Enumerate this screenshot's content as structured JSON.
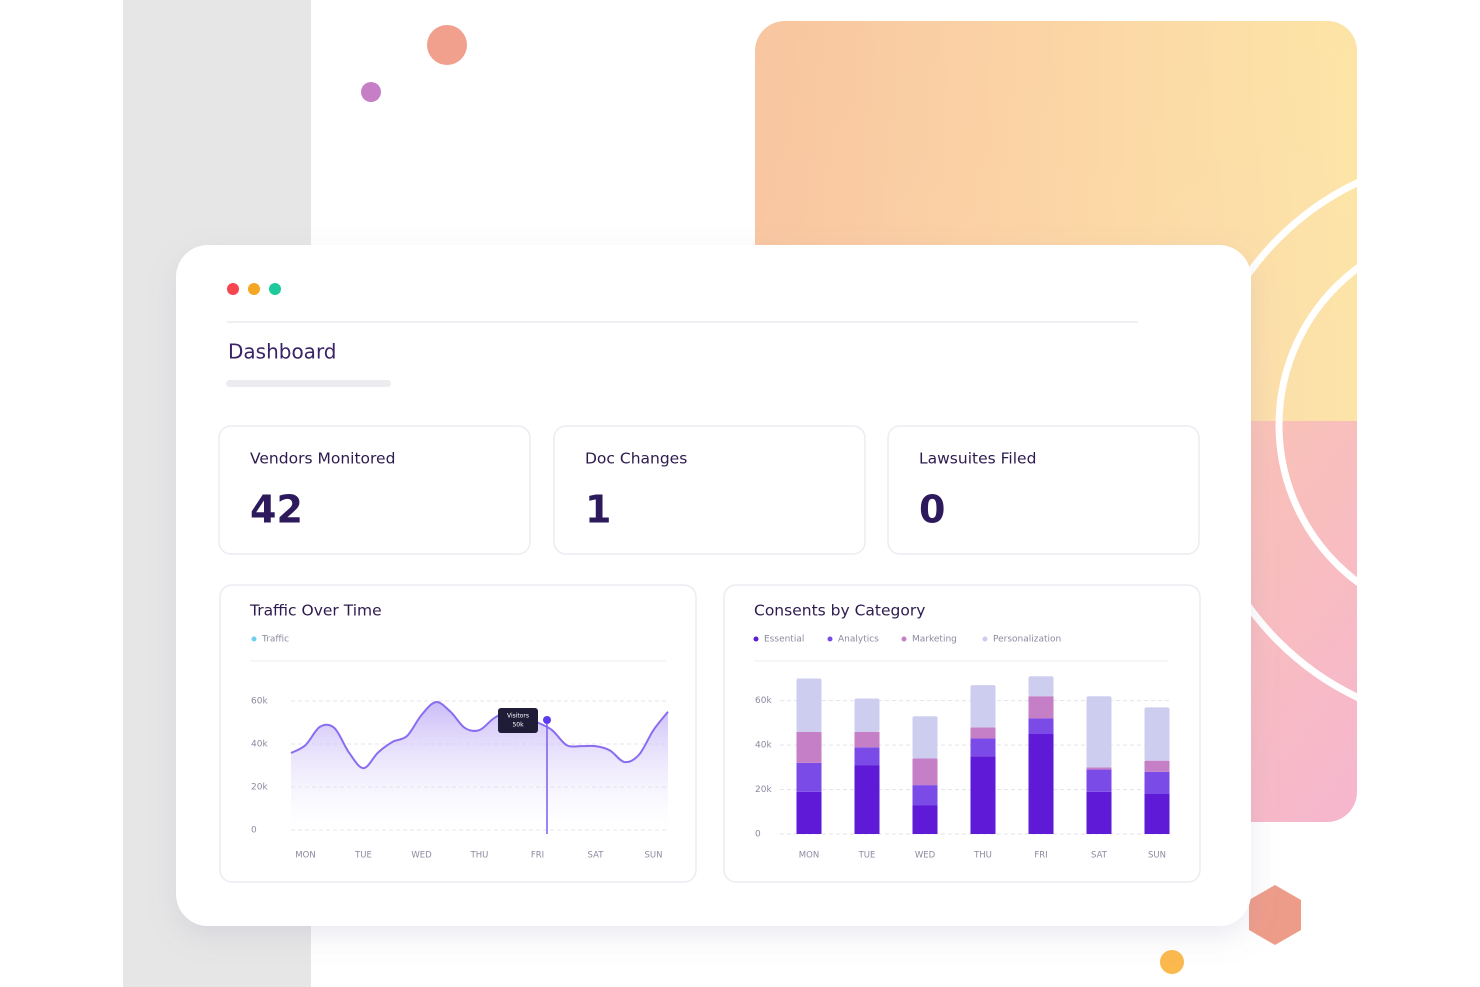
{
  "dashboard": {
    "title": "Dashboard",
    "stats": [
      {
        "label": "Vendors Monitored",
        "value": 42
      },
      {
        "label": "Doc Changes",
        "value": 1
      },
      {
        "label": "Lawsuites Filed",
        "value": 0
      }
    ]
  },
  "chart_data": [
    {
      "type": "line",
      "title": "Traffic Over Time",
      "categories": [
        null,
        "MON",
        null,
        null,
        null,
        "TUE",
        null,
        null,
        null,
        "WED",
        null,
        null,
        null,
        "THU",
        null,
        null,
        null,
        "FRI",
        null,
        null,
        null,
        "SAT",
        null,
        null,
        null,
        "SUN",
        null
      ],
      "series": [
        {
          "name": "Traffic",
          "color": "#8a6cf0",
          "values": [
            35800,
            39500,
            48000,
            47400,
            36000,
            28800,
            36000,
            41000,
            43700,
            53500,
            59500,
            55000,
            47400,
            46500,
            52000,
            55000,
            52500,
            50000,
            46500,
            39500,
            39000,
            39000,
            37000,
            31600,
            35000,
            46500,
            55000
          ]
        }
      ],
      "ylim": [
        0,
        70000
      ],
      "yticks": [
        0,
        {
          "value": 20000,
          "label": "20k"
        },
        {
          "value": 40000,
          "label": "40k"
        },
        {
          "value": 60000,
          "label": "60k"
        }
      ],
      "grid": true,
      "annotation": [
        "Visitors",
        "50k"
      ]
    },
    {
      "type": "stacked_bar",
      "title": "Consents by Category",
      "categories": [
        "MON",
        "TUE",
        "WED",
        "THU",
        "FRI",
        "SAT",
        "SUN"
      ],
      "series": [
        {
          "name": "Essential",
          "color": "#5e1ad6",
          "values": [
            19000,
            31000,
            13000,
            35000,
            45000,
            19000,
            18000
          ]
        },
        {
          "name": "Analytics",
          "color": "#7b4be8",
          "values": [
            13000,
            8000,
            9000,
            8000,
            7000,
            10000,
            10000
          ]
        },
        {
          "name": "Marketing",
          "color": "#c47fc6",
          "values": [
            14000,
            7000,
            12000,
            5000,
            10000,
            1000,
            5000
          ]
        },
        {
          "name": "Personalization",
          "color": "#cdcdf0",
          "values": [
            24000,
            15000,
            19000,
            19000,
            9000,
            32000,
            24000
          ]
        }
      ],
      "ylim": [
        0,
        72000
      ],
      "yticks": [
        0,
        {
          "value": 20000,
          "label": "20k"
        },
        {
          "value": 40000,
          "label": "40k"
        },
        {
          "value": 60000,
          "label": "60k"
        }
      ],
      "grid": true
    }
  ]
}
